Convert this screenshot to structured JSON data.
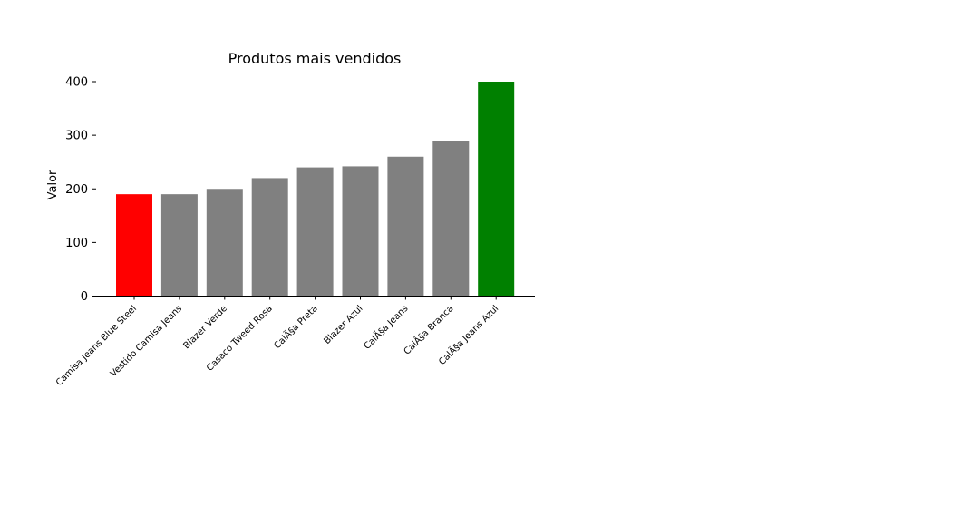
{
  "chart_data": {
    "type": "bar",
    "title": "Produtos mais vendidos",
    "xlabel": "",
    "ylabel": "Valor",
    "categories": [
      "Camisa Jeans Blue Steel",
      "Vestido Camisa Jeans",
      "Blazer Verde",
      "Casaco Tweed Rosa",
      "CalÃ§a Preta",
      "Blazer Azul",
      "CalÃ§a Jeans",
      "CalÃ§a Branca",
      "CalÃ§a Jeans Azul"
    ],
    "values": [
      190,
      190,
      200,
      220,
      240,
      242,
      260,
      290,
      400
    ],
    "colors": [
      "#ff0000",
      "#808080",
      "#808080",
      "#808080",
      "#808080",
      "#808080",
      "#808080",
      "#808080",
      "#008000"
    ],
    "ylim": [
      0,
      400
    ],
    "yticks": [
      0,
      100,
      200,
      300,
      400
    ],
    "grid": false
  }
}
